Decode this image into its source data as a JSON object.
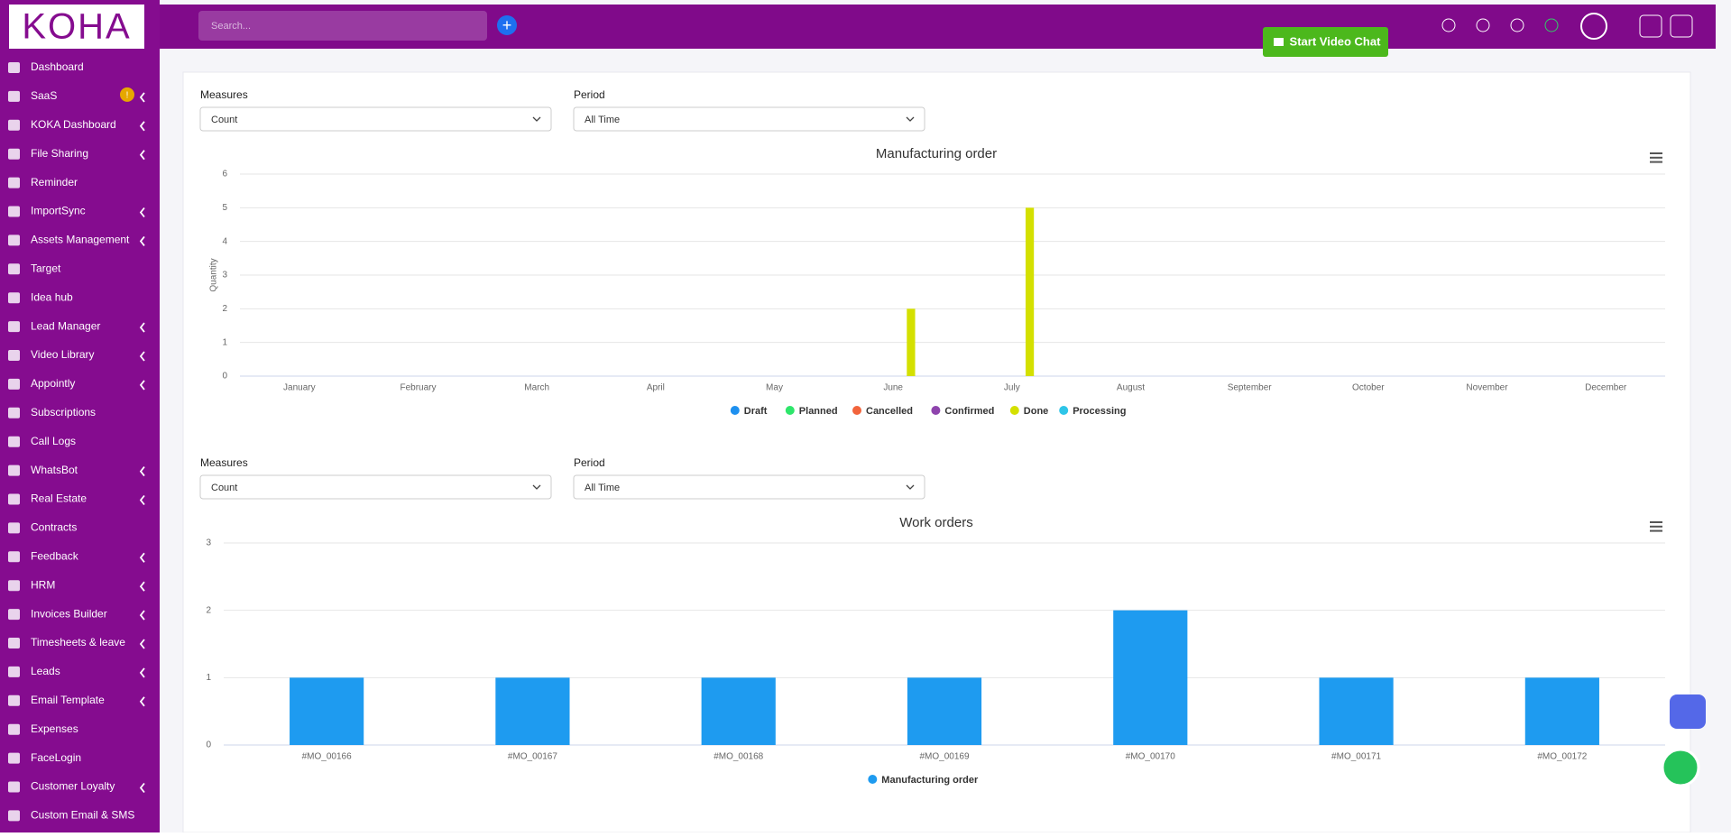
{
  "logo": "KOHA",
  "header": {
    "search_placeholder": "Search...",
    "video_button": "Start Video Chat"
  },
  "sidebar": [
    {
      "label": "Dashboard",
      "arrow": false
    },
    {
      "label": "SaaS",
      "arrow": true,
      "badge": "!"
    },
    {
      "label": "KOKA Dashboard",
      "arrow": true
    },
    {
      "label": "File Sharing",
      "arrow": true
    },
    {
      "label": "Reminder",
      "arrow": false
    },
    {
      "label": "ImportSync",
      "arrow": true
    },
    {
      "label": "Assets Management",
      "arrow": true
    },
    {
      "label": "Target",
      "arrow": false
    },
    {
      "label": "Idea hub",
      "arrow": false
    },
    {
      "label": "Lead Manager",
      "arrow": true
    },
    {
      "label": "Video Library",
      "arrow": true
    },
    {
      "label": "Appointly",
      "arrow": true
    },
    {
      "label": "Subscriptions",
      "arrow": false
    },
    {
      "label": "Call Logs",
      "arrow": false
    },
    {
      "label": "WhatsBot",
      "arrow": true
    },
    {
      "label": "Real Estate",
      "arrow": true
    },
    {
      "label": "Contracts",
      "arrow": false
    },
    {
      "label": "Feedback",
      "arrow": true
    },
    {
      "label": "HRM",
      "arrow": true
    },
    {
      "label": "Invoices Builder",
      "arrow": true
    },
    {
      "label": "Timesheets & leave",
      "arrow": true
    },
    {
      "label": "Leads",
      "arrow": true
    },
    {
      "label": "Email Template",
      "arrow": true
    },
    {
      "label": "Expenses",
      "arrow": false
    },
    {
      "label": "FaceLogin",
      "arrow": false
    },
    {
      "label": "Customer Loyalty",
      "arrow": true
    },
    {
      "label": "Custom Email & SMS",
      "arrow": false
    }
  ],
  "filters": [
    {
      "measures_label": "Measures",
      "measures": "Count",
      "period_label": "Period",
      "period": "All Time"
    },
    {
      "measures_label": "Measures",
      "measures": "Count",
      "period_label": "Period",
      "period": "All Time"
    }
  ],
  "chart_data": [
    {
      "type": "bar",
      "title": "Manufacturing order",
      "y_label": "Quantity",
      "categories": [
        "January",
        "February",
        "March",
        "April",
        "May",
        "June",
        "July",
        "August",
        "September",
        "October",
        "November",
        "December"
      ],
      "series": [
        {
          "name": "Draft",
          "color": "#1e90ef",
          "values": [
            0,
            0,
            0,
            0,
            0,
            0,
            0,
            0,
            0,
            0,
            0,
            0
          ]
        },
        {
          "name": "Planned",
          "color": "#2ee66b",
          "values": [
            0,
            0,
            0,
            0,
            0,
            0,
            0,
            0,
            0,
            0,
            0,
            0
          ]
        },
        {
          "name": "Cancelled",
          "color": "#f2643c",
          "values": [
            0,
            0,
            0,
            0,
            0,
            0,
            0,
            0,
            0,
            0,
            0,
            0
          ]
        },
        {
          "name": "Confirmed",
          "color": "#8e44ad",
          "values": [
            0,
            0,
            0,
            0,
            0,
            0,
            0,
            0,
            0,
            0,
            0,
            0
          ]
        },
        {
          "name": "Done",
          "color": "#d4e000",
          "values": [
            0,
            0,
            0,
            0,
            0,
            2,
            5,
            0,
            0,
            0,
            0,
            0
          ]
        },
        {
          "name": "Processing",
          "color": "#2ec5e8",
          "values": [
            0,
            0,
            0,
            0,
            0,
            0,
            0,
            0,
            0,
            0,
            0,
            0
          ]
        }
      ],
      "ylim": [
        0,
        6
      ],
      "yticks": [
        0,
        1,
        2,
        3,
        4,
        5,
        6
      ],
      "grid": true
    },
    {
      "type": "bar",
      "title": "Work orders",
      "categories": [
        "#MO_00166",
        "#MO_00167",
        "#MO_00168",
        "#MO_00169",
        "#MO_00170",
        "#MO_00171",
        "#MO_00172"
      ],
      "series": [
        {
          "name": "Manufacturing order",
          "color": "#1e9bf0",
          "values": [
            1,
            1,
            1,
            1,
            2,
            1,
            1
          ]
        }
      ],
      "ylim": [
        0,
        3
      ],
      "yticks": [
        0,
        1,
        2,
        3
      ],
      "grid": true
    }
  ]
}
